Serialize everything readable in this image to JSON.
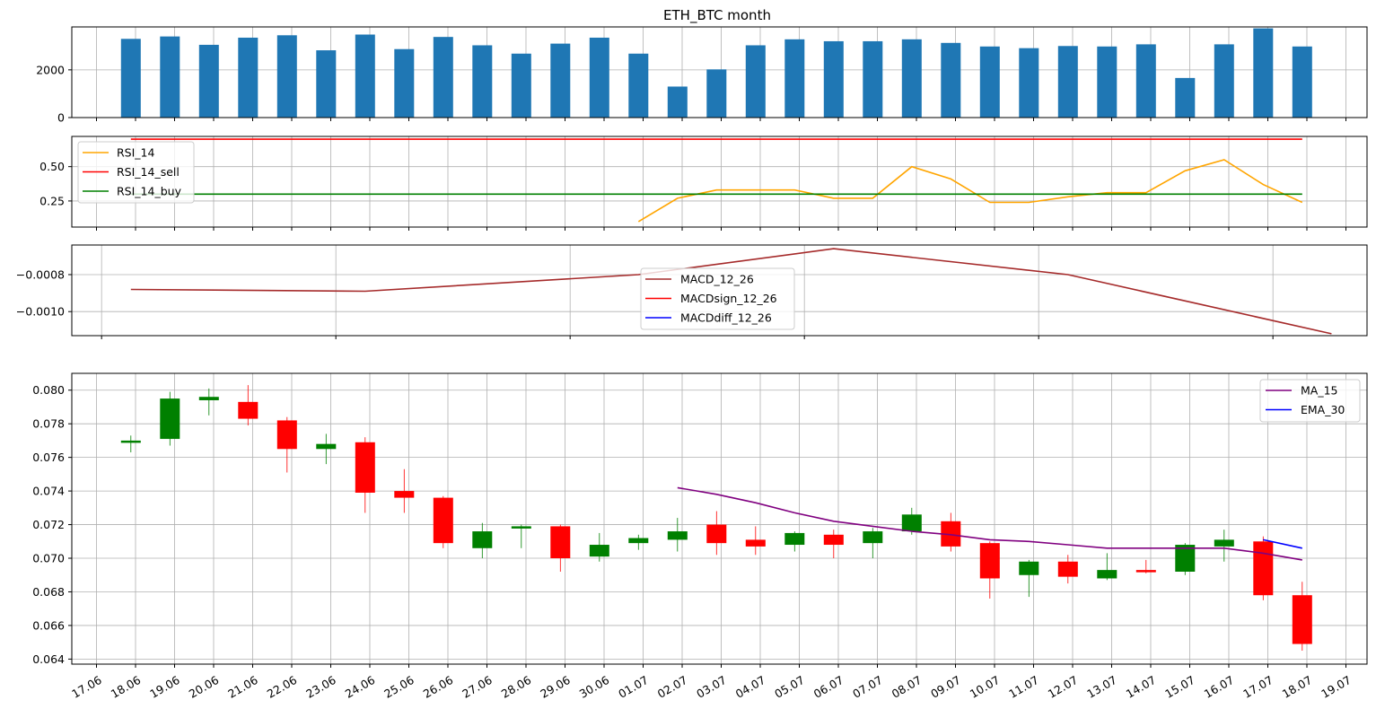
{
  "figure": {
    "title": "ETH_BTC  month"
  },
  "chart_data": [
    {
      "panel": "volume",
      "type": "bar",
      "title": "ETH_BTC  month",
      "categories": [
        "18.06",
        "19.06",
        "20.06",
        "21.06",
        "22.06",
        "23.06",
        "24.06",
        "25.06",
        "26.06",
        "27.06",
        "28.06",
        "29.06",
        "30.06",
        "01.07",
        "02.07",
        "03.07",
        "04.07",
        "05.07",
        "06.07",
        "07.07",
        "08.07",
        "09.07",
        "10.07",
        "11.07",
        "12.07",
        "13.07",
        "14.07",
        "15.07",
        "16.07",
        "17.07",
        "18.07"
      ],
      "values": [
        3300,
        3400,
        3050,
        3350,
        3450,
        2820,
        3480,
        2870,
        3380,
        3030,
        2680,
        3100,
        3350,
        2680,
        1300,
        2020,
        3030,
        3280,
        3200,
        3200,
        3280,
        3130,
        2980,
        2910,
        3000,
        2980,
        3070,
        1660,
        3070,
        3740,
        2980
      ],
      "ylim": [
        0,
        3800
      ],
      "yticks": [
        0,
        2000
      ],
      "grid": true,
      "color": "#1f77b4"
    },
    {
      "panel": "rsi",
      "type": "line",
      "x": [
        "18.06",
        "19.06",
        "20.06",
        "21.06",
        "22.06",
        "23.06",
        "24.06",
        "25.06",
        "26.06",
        "27.06",
        "28.06",
        "29.06",
        "30.06",
        "01.07",
        "02.07",
        "03.07",
        "04.07",
        "05.07",
        "06.07",
        "07.07",
        "08.07",
        "09.07",
        "10.07",
        "11.07",
        "12.07",
        "13.07",
        "14.07",
        "15.07",
        "16.07",
        "17.07",
        "18.07"
      ],
      "series": [
        {
          "name": "RSI_14",
          "color": "#ffa500",
          "values": [
            null,
            null,
            null,
            null,
            null,
            null,
            null,
            null,
            null,
            null,
            null,
            null,
            null,
            0.1,
            0.27,
            0.33,
            0.33,
            0.33,
            0.27,
            0.27,
            0.5,
            0.41,
            0.24,
            0.24,
            0.28,
            0.31,
            0.31,
            0.47,
            0.55,
            0.37,
            0.24
          ]
        },
        {
          "name": "RSI_14_sell",
          "color": "#ff0000",
          "values": [
            0.7,
            0.7,
            0.7,
            0.7,
            0.7,
            0.7,
            0.7,
            0.7,
            0.7,
            0.7,
            0.7,
            0.7,
            0.7,
            0.7,
            0.7,
            0.7,
            0.7,
            0.7,
            0.7,
            0.7,
            0.7,
            0.7,
            0.7,
            0.7,
            0.7,
            0.7,
            0.7,
            0.7,
            0.7,
            0.7,
            0.7
          ]
        },
        {
          "name": "RSI_14_buy",
          "color": "#008000",
          "values": [
            0.3,
            0.3,
            0.3,
            0.3,
            0.3,
            0.3,
            0.3,
            0.3,
            0.3,
            0.3,
            0.3,
            0.3,
            0.3,
            0.3,
            0.3,
            0.3,
            0.3,
            0.3,
            0.3,
            0.3,
            0.3,
            0.3,
            0.3,
            0.3,
            0.3,
            0.3,
            0.3,
            0.3,
            0.3,
            0.3,
            0.3
          ]
        }
      ],
      "ylim": [
        0.06,
        0.72
      ],
      "yticks": [
        0.25,
        0.5
      ],
      "grid": true,
      "legend": "top-left"
    },
    {
      "panel": "macd",
      "type": "line",
      "series": [
        {
          "name": "MACD_12_26",
          "color": "#a52a2a",
          "x": [
            0,
            6,
            13,
            18,
            24,
            30.75
          ],
          "values": [
            -0.00088,
            -0.00089,
            -0.0008,
            -0.00066,
            -0.0008,
            -0.00112
          ]
        },
        {
          "name": "MACDsign_12_26",
          "color": "#ff0000",
          "x": [],
          "values": []
        },
        {
          "name": "MACDdiff_12_26",
          "color": "#0000ff",
          "x": [],
          "values": []
        }
      ],
      "xticks": [
        -0.75,
        5.25,
        11.25,
        17.25,
        23.25,
        29.25
      ],
      "ylim": [
        -0.00113,
        -0.00064
      ],
      "yticks": [
        -0.001,
        -0.0008
      ],
      "ytick_labels": [
        "−0.0010",
        "−0.0008"
      ],
      "grid": true,
      "legend": "center"
    },
    {
      "panel": "price",
      "type": "candlestick",
      "x": [
        "18.06",
        "19.06",
        "20.06",
        "21.06",
        "22.06",
        "23.06",
        "24.06",
        "25.06",
        "26.06",
        "27.06",
        "28.06",
        "29.06",
        "30.06",
        "01.07",
        "02.07",
        "03.07",
        "04.07",
        "05.07",
        "06.07",
        "07.07",
        "08.07",
        "09.07",
        "10.07",
        "11.07",
        "12.07",
        "13.07",
        "14.07",
        "15.07",
        "16.07",
        "17.07",
        "18.07"
      ],
      "candles": [
        {
          "o": 0.0769,
          "h": 0.0773,
          "l": 0.0763,
          "c": 0.077
        },
        {
          "o": 0.0771,
          "h": 0.0799,
          "l": 0.0767,
          "c": 0.0795
        },
        {
          "o": 0.0794,
          "h": 0.0801,
          "l": 0.0785,
          "c": 0.0796
        },
        {
          "o": 0.0793,
          "h": 0.0803,
          "l": 0.0779,
          "c": 0.0783
        },
        {
          "o": 0.0782,
          "h": 0.0784,
          "l": 0.0751,
          "c": 0.0765
        },
        {
          "o": 0.0765,
          "h": 0.0774,
          "l": 0.0756,
          "c": 0.0768
        },
        {
          "o": 0.0769,
          "h": 0.0772,
          "l": 0.0727,
          "c": 0.0739
        },
        {
          "o": 0.074,
          "h": 0.0753,
          "l": 0.0727,
          "c": 0.0736
        },
        {
          "o": 0.0736,
          "h": 0.0737,
          "l": 0.0706,
          "c": 0.0709
        },
        {
          "o": 0.0706,
          "h": 0.0721,
          "l": 0.07,
          "c": 0.0716
        },
        {
          "o": 0.0718,
          "h": 0.072,
          "l": 0.0706,
          "c": 0.0719
        },
        {
          "o": 0.0719,
          "h": 0.072,
          "l": 0.0692,
          "c": 0.07
        },
        {
          "o": 0.0701,
          "h": 0.0715,
          "l": 0.0698,
          "c": 0.0708
        },
        {
          "o": 0.0709,
          "h": 0.0714,
          "l": 0.0705,
          "c": 0.0712
        },
        {
          "o": 0.0711,
          "h": 0.0724,
          "l": 0.0704,
          "c": 0.0716
        },
        {
          "o": 0.072,
          "h": 0.0728,
          "l": 0.0702,
          "c": 0.0709
        },
        {
          "o": 0.0711,
          "h": 0.0719,
          "l": 0.0702,
          "c": 0.0707
        },
        {
          "o": 0.0708,
          "h": 0.0716,
          "l": 0.0704,
          "c": 0.0715
        },
        {
          "o": 0.0714,
          "h": 0.0717,
          "l": 0.07,
          "c": 0.0708
        },
        {
          "o": 0.0709,
          "h": 0.0718,
          "l": 0.07,
          "c": 0.0716
        },
        {
          "o": 0.0716,
          "h": 0.073,
          "l": 0.0714,
          "c": 0.0726
        },
        {
          "o": 0.0722,
          "h": 0.0727,
          "l": 0.0704,
          "c": 0.0707
        },
        {
          "o": 0.0709,
          "h": 0.071,
          "l": 0.0676,
          "c": 0.0688
        },
        {
          "o": 0.069,
          "h": 0.0699,
          "l": 0.0677,
          "c": 0.0698
        },
        {
          "o": 0.0698,
          "h": 0.0702,
          "l": 0.0685,
          "c": 0.0689
        },
        {
          "o": 0.0688,
          "h": 0.0703,
          "l": 0.0687,
          "c": 0.0693
        },
        {
          "o": 0.0693,
          "h": 0.0699,
          "l": 0.0691,
          "c": 0.0692
        },
        {
          "o": 0.0692,
          "h": 0.0709,
          "l": 0.069,
          "c": 0.0708
        },
        {
          "o": 0.0707,
          "h": 0.0717,
          "l": 0.0698,
          "c": 0.0711
        },
        {
          "o": 0.071,
          "h": 0.0713,
          "l": 0.0675,
          "c": 0.0678
        },
        {
          "o": 0.0678,
          "h": 0.0686,
          "l": 0.0645,
          "c": 0.0649
        }
      ],
      "series": [
        {
          "name": "MA_15",
          "color": "#800080",
          "values": [
            null,
            null,
            null,
            null,
            null,
            null,
            null,
            null,
            null,
            null,
            null,
            null,
            null,
            null,
            0.0742,
            0.0738,
            0.0733,
            0.0727,
            0.0722,
            0.0719,
            0.0716,
            0.0714,
            0.0711,
            0.071,
            0.0708,
            0.0706,
            0.0706,
            0.0706,
            0.0706,
            0.0703,
            0.0699
          ]
        },
        {
          "name": "EMA_30",
          "color": "#0000ff",
          "values": [
            null,
            null,
            null,
            null,
            null,
            null,
            null,
            null,
            null,
            null,
            null,
            null,
            null,
            null,
            null,
            null,
            null,
            null,
            null,
            null,
            null,
            null,
            null,
            null,
            null,
            null,
            null,
            null,
            null,
            0.0711,
            0.0706
          ]
        }
      ],
      "up_color": "#008000",
      "down_color": "#ff0000",
      "ylim": [
        0.0637,
        0.081
      ],
      "yticks": [
        0.064,
        0.066,
        0.068,
        0.07,
        0.072,
        0.074,
        0.076,
        0.078,
        0.08
      ],
      "ytick_labels": [
        "0.064",
        "0.066",
        "0.068",
        "0.070",
        "0.072",
        "0.074",
        "0.076",
        "0.078",
        "0.080"
      ],
      "xtick_labels": [
        "17.06",
        "18.06",
        "19.06",
        "20.06",
        "21.06",
        "22.06",
        "23.06",
        "24.06",
        "25.06",
        "26.06",
        "27.06",
        "28.06",
        "29.06",
        "30.06",
        "01.07",
        "02.07",
        "03.07",
        "04.07",
        "05.07",
        "06.07",
        "07.07",
        "08.07",
        "09.07",
        "10.07",
        "11.07",
        "12.07",
        "13.07",
        "14.07",
        "15.07",
        "16.07",
        "17.07",
        "18.07",
        "19.07"
      ],
      "grid": true,
      "legend": "top-right"
    }
  ]
}
